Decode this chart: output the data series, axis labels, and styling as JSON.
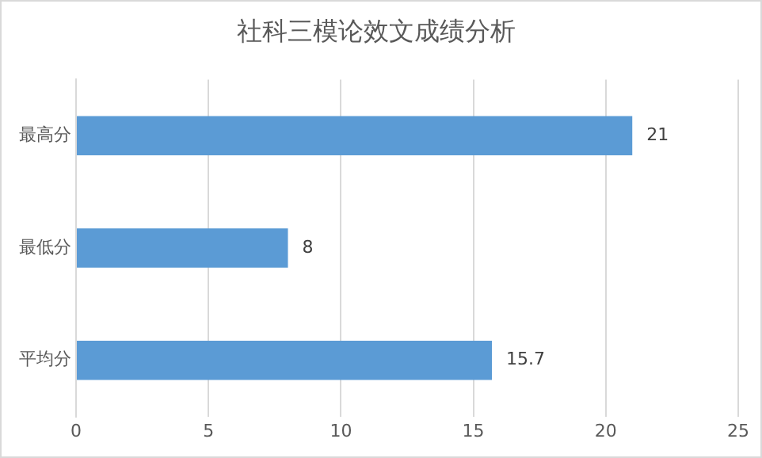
{
  "chart_data": {
    "type": "bar",
    "orientation": "horizontal",
    "title": "社科三模论效文成绩分析",
    "categories": [
      "最高分",
      "最低分",
      "平均分"
    ],
    "values": [
      21,
      8,
      15.7
    ],
    "color": "#5b9bd5",
    "xlim": [
      0,
      25
    ],
    "xticks": [
      0,
      5,
      10,
      15,
      20,
      25
    ],
    "grid": "x",
    "data_labels": true
  }
}
